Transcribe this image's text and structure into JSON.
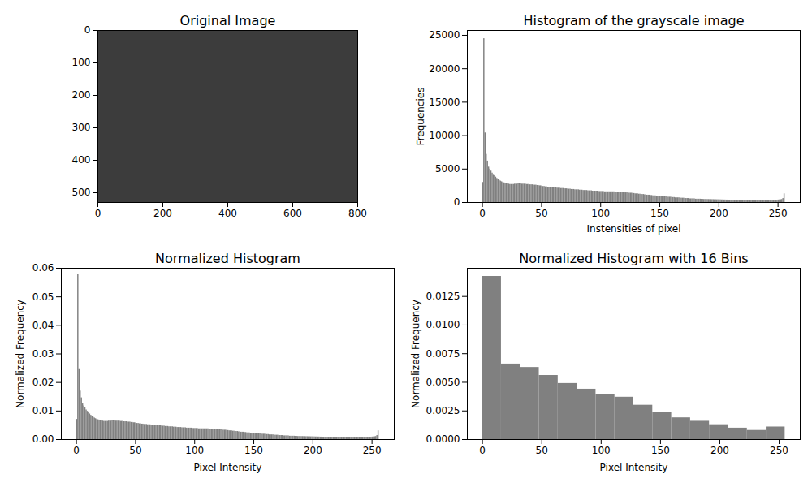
{
  "chart_data": [
    {
      "type": "image",
      "title": "Original Image",
      "xlim": [
        0,
        800
      ],
      "ylim": [
        530,
        0
      ],
      "xticks": [
        0,
        200,
        400,
        600,
        800
      ],
      "yticks": [
        0,
        100,
        200,
        300,
        400,
        500
      ]
    },
    {
      "type": "histogram",
      "title": "Histogram of the grayscale image",
      "x_label": "Instensities of pixel",
      "y_label": "Frequencies",
      "color": "#808080",
      "xlim": [
        -12.8,
        268.8
      ],
      "ylim": [
        0,
        25725
      ],
      "xticks": [
        0,
        50,
        100,
        150,
        200,
        250
      ],
      "yticks": [
        0,
        5000,
        10000,
        15000,
        20000,
        25000
      ],
      "bins": [
        0,
        1,
        2,
        3,
        4,
        5,
        6,
        7,
        8,
        9,
        10,
        11,
        12,
        13,
        14,
        15,
        16,
        17,
        18,
        19,
        20,
        21,
        22,
        23,
        24,
        25,
        26,
        27,
        28,
        29,
        30,
        31,
        32,
        33,
        34,
        35,
        36,
        37,
        38,
        39,
        40,
        41,
        42,
        43,
        44,
        45,
        46,
        47,
        48,
        49,
        50,
        51,
        52,
        53,
        54,
        55,
        56,
        57,
        58,
        59,
        60,
        61,
        62,
        63,
        64,
        65,
        66,
        67,
        68,
        69,
        70,
        71,
        72,
        73,
        74,
        75,
        76,
        77,
        78,
        79,
        80,
        81,
        82,
        83,
        84,
        85,
        86,
        87,
        88,
        89,
        90,
        91,
        92,
        93,
        94,
        95,
        96,
        97,
        98,
        99,
        100,
        101,
        102,
        103,
        104,
        105,
        106,
        107,
        108,
        109,
        110,
        111,
        112,
        113,
        114,
        115,
        116,
        117,
        118,
        119,
        120,
        121,
        122,
        123,
        124,
        125,
        126,
        127,
        128,
        129,
        130,
        131,
        132,
        133,
        134,
        135,
        136,
        137,
        138,
        139,
        140,
        141,
        142,
        143,
        144,
        145,
        146,
        147,
        148,
        149,
        150,
        151,
        152,
        153,
        154,
        155,
        156,
        157,
        158,
        159,
        160,
        161,
        162,
        163,
        164,
        165,
        166,
        167,
        168,
        169,
        170,
        171,
        172,
        173,
        174,
        175,
        176,
        177,
        178,
        179,
        180,
        181,
        182,
        183,
        184,
        185,
        186,
        187,
        188,
        189,
        190,
        191,
        192,
        193,
        194,
        195,
        196,
        197,
        198,
        199,
        200,
        201,
        202,
        203,
        204,
        205,
        206,
        207,
        208,
        209,
        210,
        211,
        212,
        213,
        214,
        215,
        216,
        217,
        218,
        219,
        220,
        221,
        222,
        223,
        224,
        225,
        226,
        227,
        228,
        229,
        230,
        231,
        232,
        233,
        234,
        235,
        236,
        237,
        238,
        239,
        240,
        241,
        242,
        243,
        244,
        245,
        246,
        247,
        248,
        249,
        250,
        251,
        252,
        253,
        254,
        255,
        256
      ],
      "values": [
        3000,
        24500,
        10400,
        7200,
        6200,
        5300,
        5000,
        4700,
        4400,
        4200,
        4000,
        3800,
        3600,
        3500,
        3300,
        3200,
        3100,
        3000,
        2950,
        2900,
        2850,
        2800,
        2750,
        2700,
        2700,
        2700,
        2700,
        2750,
        2750,
        2750,
        2800,
        2800,
        2800,
        2750,
        2750,
        2750,
        2750,
        2700,
        2700,
        2700,
        2650,
        2650,
        2650,
        2600,
        2600,
        2600,
        2550,
        2550,
        2500,
        2500,
        2450,
        2400,
        2400,
        2350,
        2350,
        2300,
        2300,
        2250,
        2250,
        2250,
        2200,
        2200,
        2200,
        2150,
        2150,
        2150,
        2100,
        2100,
        2100,
        2050,
        2050,
        2050,
        2000,
        2000,
        2000,
        1950,
        1950,
        1950,
        1900,
        1900,
        1900,
        1900,
        1850,
        1850,
        1850,
        1800,
        1800,
        1800,
        1800,
        1750,
        1750,
        1750,
        1750,
        1700,
        1700,
        1700,
        1700,
        1700,
        1650,
        1650,
        1650,
        1650,
        1650,
        1600,
        1600,
        1600,
        1600,
        1600,
        1600,
        1600,
        1600,
        1600,
        1550,
        1550,
        1550,
        1550,
        1550,
        1500,
        1500,
        1500,
        1500,
        1450,
        1450,
        1450,
        1400,
        1400,
        1400,
        1350,
        1350,
        1300,
        1300,
        1300,
        1250,
        1250,
        1200,
        1200,
        1200,
        1150,
        1150,
        1100,
        1100,
        1100,
        1050,
        1050,
        1000,
        1000,
        1000,
        950,
        950,
        950,
        900,
        900,
        900,
        850,
        850,
        850,
        800,
        800,
        800,
        800,
        750,
        750,
        750,
        700,
        700,
        700,
        700,
        650,
        650,
        650,
        650,
        600,
        600,
        600,
        600,
        550,
        550,
        550,
        550,
        550,
        500,
        500,
        500,
        500,
        500,
        480,
        480,
        460,
        460,
        460,
        450,
        450,
        440,
        440,
        430,
        430,
        420,
        420,
        410,
        410,
        400,
        400,
        390,
        390,
        380,
        380,
        370,
        370,
        360,
        360,
        350,
        350,
        340,
        340,
        330,
        330,
        320,
        320,
        310,
        310,
        300,
        300,
        300,
        290,
        290,
        290,
        280,
        280,
        280,
        270,
        270,
        270,
        260,
        260,
        260,
        250,
        250,
        250,
        250,
        250,
        250,
        250,
        250,
        260,
        260,
        270,
        280,
        300,
        320,
        350,
        380,
        400,
        420,
        450,
        600,
        1300
      ]
    },
    {
      "type": "histogram",
      "title": "Normalized Histogram",
      "x_label": "Pixel Intensity",
      "y_label": "Normalized Frequency",
      "color": "#808080",
      "xlim": [
        -12.8,
        268.8
      ],
      "ylim": [
        0,
        0.06
      ],
      "xticks": [
        0,
        50,
        100,
        150,
        200,
        250
      ],
      "yticks": [
        {
          "value": 0,
          "label": "0.00"
        },
        {
          "value": 0.01,
          "label": "0.01"
        },
        {
          "value": 0.02,
          "label": "0.02"
        },
        {
          "value": 0.03,
          "label": "0.03"
        },
        {
          "value": 0.04,
          "label": "0.04"
        },
        {
          "value": 0.05,
          "label": "0.05"
        },
        {
          "value": 0.06,
          "label": "0.06"
        }
      ],
      "bins": [
        0,
        1,
        2,
        3,
        4,
        5,
        6,
        7,
        8,
        9,
        10,
        11,
        12,
        13,
        14,
        15,
        16,
        17,
        18,
        19,
        20,
        21,
        22,
        23,
        24,
        25,
        26,
        27,
        28,
        29,
        30,
        31,
        32,
        33,
        34,
        35,
        36,
        37,
        38,
        39,
        40,
        41,
        42,
        43,
        44,
        45,
        46,
        47,
        48,
        49,
        50,
        51,
        52,
        53,
        54,
        55,
        56,
        57,
        58,
        59,
        60,
        61,
        62,
        63,
        64,
        65,
        66,
        67,
        68,
        69,
        70,
        71,
        72,
        73,
        74,
        75,
        76,
        77,
        78,
        79,
        80,
        81,
        82,
        83,
        84,
        85,
        86,
        87,
        88,
        89,
        90,
        91,
        92,
        93,
        94,
        95,
        96,
        97,
        98,
        99,
        100,
        101,
        102,
        103,
        104,
        105,
        106,
        107,
        108,
        109,
        110,
        111,
        112,
        113,
        114,
        115,
        116,
        117,
        118,
        119,
        120,
        121,
        122,
        123,
        124,
        125,
        126,
        127,
        128,
        129,
        130,
        131,
        132,
        133,
        134,
        135,
        136,
        137,
        138,
        139,
        140,
        141,
        142,
        143,
        144,
        145,
        146,
        147,
        148,
        149,
        150,
        151,
        152,
        153,
        154,
        155,
        156,
        157,
        158,
        159,
        160,
        161,
        162,
        163,
        164,
        165,
        166,
        167,
        168,
        169,
        170,
        171,
        172,
        173,
        174,
        175,
        176,
        177,
        178,
        179,
        180,
        181,
        182,
        183,
        184,
        185,
        186,
        187,
        188,
        189,
        190,
        191,
        192,
        193,
        194,
        195,
        196,
        197,
        198,
        199,
        200,
        201,
        202,
        203,
        204,
        205,
        206,
        207,
        208,
        209,
        210,
        211,
        212,
        213,
        214,
        215,
        216,
        217,
        218,
        219,
        220,
        221,
        222,
        223,
        224,
        225,
        226,
        227,
        228,
        229,
        230,
        231,
        232,
        233,
        234,
        235,
        236,
        237,
        238,
        239,
        240,
        241,
        242,
        243,
        244,
        245,
        246,
        247,
        248,
        249,
        250,
        251,
        252,
        253,
        254,
        255,
        256
      ],
      "values": [
        0.00707,
        0.05777,
        0.02453,
        0.01698,
        0.01462,
        0.0125,
        0.01179,
        0.01108,
        0.01038,
        0.0099,
        0.00943,
        0.00896,
        0.00849,
        0.00825,
        0.00778,
        0.00755,
        0.00731,
        0.00707,
        0.00696,
        0.00684,
        0.00672,
        0.0066,
        0.00648,
        0.00637,
        0.00637,
        0.00637,
        0.00637,
        0.00648,
        0.00648,
        0.00648,
        0.0066,
        0.0066,
        0.0066,
        0.00648,
        0.00648,
        0.00648,
        0.00648,
        0.00637,
        0.00637,
        0.00637,
        0.00625,
        0.00625,
        0.00625,
        0.00613,
        0.00613,
        0.00613,
        0.00601,
        0.00601,
        0.0059,
        0.0059,
        0.00578,
        0.00566,
        0.00566,
        0.00554,
        0.00554,
        0.00542,
        0.00542,
        0.00531,
        0.00531,
        0.00531,
        0.00519,
        0.00519,
        0.00519,
        0.00507,
        0.00507,
        0.00507,
        0.00495,
        0.00495,
        0.00495,
        0.00483,
        0.00483,
        0.00483,
        0.00472,
        0.00472,
        0.00472,
        0.0046,
        0.0046,
        0.0046,
        0.00448,
        0.00448,
        0.00448,
        0.00448,
        0.00436,
        0.00436,
        0.00436,
        0.00424,
        0.00424,
        0.00424,
        0.00424,
        0.00413,
        0.00413,
        0.00413,
        0.00413,
        0.00401,
        0.00401,
        0.00401,
        0.00401,
        0.00401,
        0.00389,
        0.00389,
        0.00389,
        0.00389,
        0.00389,
        0.00377,
        0.00377,
        0.00377,
        0.00377,
        0.00377,
        0.00377,
        0.00377,
        0.00377,
        0.00377,
        0.00365,
        0.00365,
        0.00365,
        0.00365,
        0.00365,
        0.00354,
        0.00354,
        0.00354,
        0.00354,
        0.00342,
        0.00342,
        0.00342,
        0.0033,
        0.0033,
        0.0033,
        0.00318,
        0.00318,
        0.00307,
        0.00307,
        0.00307,
        0.00295,
        0.00295,
        0.00283,
        0.00283,
        0.00283,
        0.00271,
        0.00271,
        0.00259,
        0.00259,
        0.00259,
        0.00248,
        0.00248,
        0.00236,
        0.00236,
        0.00236,
        0.00224,
        0.00224,
        0.00224,
        0.00212,
        0.00212,
        0.00212,
        0.002,
        0.002,
        0.002,
        0.00189,
        0.00189,
        0.00189,
        0.00189,
        0.00177,
        0.00177,
        0.00177,
        0.00165,
        0.00165,
        0.00165,
        0.00165,
        0.00153,
        0.00153,
        0.00153,
        0.00153,
        0.00141,
        0.00141,
        0.00141,
        0.00141,
        0.0013,
        0.0013,
        0.0013,
        0.0013,
        0.0013,
        0.00118,
        0.00118,
        0.00118,
        0.00118,
        0.00118,
        0.00113,
        0.00113,
        0.00108,
        0.00108,
        0.00108,
        0.00106,
        0.00106,
        0.00104,
        0.00104,
        0.00101,
        0.00101,
        0.00099,
        0.00099,
        0.00097,
        0.00097,
        0.00094,
        0.00094,
        0.00092,
        0.00092,
        0.0009,
        0.0009,
        0.00087,
        0.00087,
        0.00085,
        0.00085,
        0.00083,
        0.00083,
        0.0008,
        0.0008,
        0.00078,
        0.00078,
        0.00075,
        0.00075,
        0.00073,
        0.00073,
        0.00071,
        0.00071,
        0.00071,
        0.00068,
        0.00068,
        0.00068,
        0.00066,
        0.00066,
        0.00066,
        0.00064,
        0.00064,
        0.00064,
        0.00061,
        0.00061,
        0.00061,
        0.00059,
        0.00059,
        0.00059,
        0.00059,
        0.00059,
        0.00059,
        0.00059,
        0.00059,
        0.00061,
        0.00061,
        0.00064,
        0.00066,
        0.00071,
        0.00075,
        0.00083,
        0.0009,
        0.00094,
        0.00099,
        0.00106,
        0.00141,
        0.00307
      ]
    },
    {
      "type": "histogram",
      "title": "Normalized Histogram with 16 Bins",
      "x_label": "Pixel Intensity",
      "y_label": "Normalized Frequency",
      "color": "#808080",
      "xlim": [
        -12.75,
        267.75
      ],
      "ylim": [
        0,
        0.01496
      ],
      "xticks": [
        0,
        50,
        100,
        150,
        200,
        250
      ],
      "yticks": [
        {
          "value": 0,
          "label": "0.0000"
        },
        {
          "value": 0.0025,
          "label": "0.0025"
        },
        {
          "value": 0.005,
          "label": "0.0050"
        },
        {
          "value": 0.0075,
          "label": "0.0075"
        },
        {
          "value": 0.01,
          "label": "0.0100"
        },
        {
          "value": 0.0125,
          "label": "0.0125"
        }
      ],
      "bins": [
        0,
        15.9375,
        31.875,
        47.8125,
        63.75,
        79.6875,
        95.625,
        111.5625,
        127.5,
        143.4375,
        159.375,
        175.3125,
        191.25,
        207.1875,
        223.125,
        239.0625,
        255
      ],
      "values": [
        0.01425,
        0.0066,
        0.0063,
        0.0056,
        0.0049,
        0.0044,
        0.0039,
        0.0037,
        0.003,
        0.0024,
        0.0019,
        0.0016,
        0.0013,
        0.001,
        0.0008,
        0.0011
      ]
    }
  ]
}
